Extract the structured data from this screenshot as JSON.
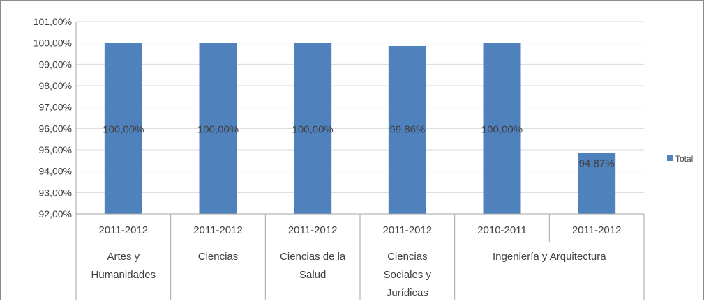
{
  "chart_data": {
    "type": "bar",
    "categories": [
      {
        "period": "2011-2012",
        "branch": "Artes y Humanidades",
        "branch_lines": [
          "Artes y",
          "Humanidades"
        ]
      },
      {
        "period": "2011-2012",
        "branch": "Ciencias",
        "branch_lines": [
          "Ciencias"
        ]
      },
      {
        "period": "2011-2012",
        "branch": "Ciencias de la Salud",
        "branch_lines": [
          "Ciencias de la",
          "Salud"
        ]
      },
      {
        "period": "2011-2012",
        "branch": "Ciencias Sociales y Jurídicas",
        "branch_lines": [
          "Ciencias",
          "Sociales y",
          "Jurídicas"
        ]
      },
      {
        "period": "2010-2011",
        "branch": "Ingeniería y Arquitectura",
        "branch_lines": [
          "Ingeniería y Arquitectura"
        ]
      },
      {
        "period": "2011-2012",
        "branch": "Ingeniería y Arquitectura",
        "branch_lines": []
      }
    ],
    "series": [
      {
        "name": "Total",
        "values": [
          100.0,
          100.0,
          100.0,
          99.86,
          100.0,
          94.87
        ],
        "value_labels": [
          "100,00%",
          "100,00%",
          "100,00%",
          "99,86%",
          "100,00%",
          "94,87%"
        ]
      }
    ],
    "ylim": [
      92,
      101
    ],
    "y_ticks": [
      {
        "value": 92,
        "label": "92,00%"
      },
      {
        "value": 93,
        "label": "93,00%"
      },
      {
        "value": 94,
        "label": "94,00%"
      },
      {
        "value": 95,
        "label": "95,00%"
      },
      {
        "value": 96,
        "label": "96,00%"
      },
      {
        "value": 97,
        "label": "97,00%"
      },
      {
        "value": 98,
        "label": "98,00%"
      },
      {
        "value": 99,
        "label": "99,00%"
      },
      {
        "value": 100,
        "label": "100,00%"
      },
      {
        "value": 101,
        "label": "101,00%"
      }
    ],
    "grid": true,
    "legend_position": "right",
    "bar_color": "#4f81bd",
    "grid_color": "#d9d9d9",
    "axis_color": "#a6a6a6"
  }
}
